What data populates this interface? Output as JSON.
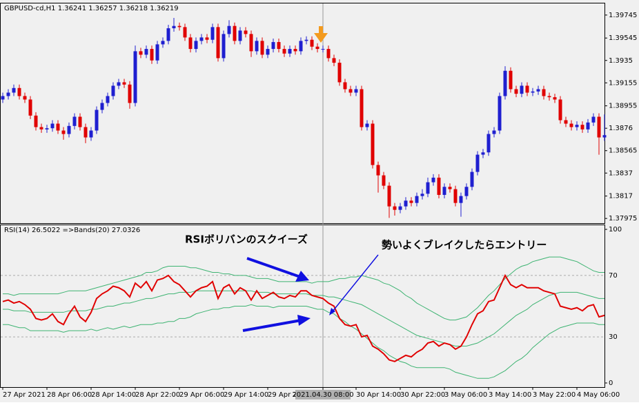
{
  "chart_data": [
    {
      "type": "candlestick",
      "title": "GBPUSD-cd,H1 1.36241 1.36257 1.36218 1.36219",
      "categories": [
        "27 Apr 2021",
        null,
        null,
        null,
        null,
        null,
        null,
        null,
        "28 Apr 06:00",
        null,
        null,
        null,
        null,
        null,
        null,
        null,
        "28 Apr 14:00",
        null,
        null,
        null,
        null,
        null,
        null,
        null,
        "28 Apr 22:00",
        null,
        null,
        null,
        null,
        null,
        null,
        null,
        "29 Apr 06:00",
        null,
        null,
        null,
        null,
        null,
        null,
        null,
        "29 Apr 14:00",
        null,
        null,
        null,
        null,
        null,
        null,
        null,
        "29 Apr 22:00",
        null,
        null,
        null,
        null,
        null,
        null,
        null,
        null,
        null,
        "2021.04.30 08:00",
        null,
        null,
        null,
        null,
        null,
        "30 Apr 14:00",
        null,
        null,
        null,
        null,
        null,
        null,
        null,
        "30 Apr 22:00",
        null,
        null,
        null,
        null,
        null,
        null,
        null,
        "3 May 06:00",
        null,
        null,
        null,
        null,
        null,
        null,
        null,
        "3 May 14:00",
        null,
        null,
        null,
        null,
        null,
        null,
        null,
        "3 May 22:00",
        null,
        null,
        null,
        null,
        null,
        null,
        null,
        "4 May 06:00",
        null,
        null,
        null,
        null,
        null
      ],
      "crosshair_index": 58,
      "open": [
        1.3901,
        1.3904,
        1.3907,
        1.3911,
        1.3904,
        1.3901,
        1.3887,
        1.3877,
        1.3875,
        1.3876,
        1.388,
        1.3874,
        1.3871,
        1.3878,
        1.3886,
        1.3877,
        1.3868,
        1.3874,
        1.3892,
        1.3898,
        1.3904,
        1.3913,
        1.3916,
        1.3914,
        1.3898,
        1.3943,
        1.394,
        1.3945,
        1.3935,
        1.3949,
        1.3952,
        1.3963,
        1.3965,
        1.3964,
        1.3955,
        1.3945,
        1.3952,
        1.3955,
        1.3953,
        1.3964,
        1.3937,
        1.3958,
        1.3965,
        1.3952,
        1.3961,
        1.3958,
        1.3943,
        1.3952,
        1.394,
        1.3945,
        1.3951,
        1.3945,
        1.3941,
        1.3945,
        1.3943,
        1.3952,
        1.3953,
        1.3947,
        1.3945,
        1.3945,
        1.3937,
        1.3933,
        1.3916,
        1.391,
        1.3907,
        1.391,
        1.3877,
        1.388,
        1.3844,
        1.3835,
        1.3826,
        1.3808,
        1.3805,
        1.3808,
        1.3813,
        1.3811,
        1.3817,
        1.3819,
        1.3829,
        1.3833,
        1.3818,
        1.3825,
        1.3823,
        1.3811,
        1.3817,
        1.3825,
        1.3838,
        1.3853,
        1.3855,
        1.3871,
        1.3874,
        1.3904,
        1.3926,
        1.391,
        1.3906,
        1.3913,
        1.3907,
        1.3908,
        1.391,
        1.3904,
        1.3903,
        1.3901,
        1.3883,
        1.388,
        1.3877,
        1.3879,
        1.3875,
        1.3881,
        1.3886,
        1.3868
      ],
      "high": [
        1.3907,
        1.391,
        1.3914,
        1.3914,
        1.3907,
        1.3904,
        1.389,
        1.388,
        1.3879,
        1.3883,
        1.3883,
        1.3877,
        1.3881,
        1.3889,
        1.3889,
        1.388,
        1.3877,
        1.3895,
        1.3901,
        1.3907,
        1.3916,
        1.3919,
        1.3919,
        1.3917,
        1.3948,
        1.3946,
        1.3948,
        1.3948,
        1.3952,
        1.3955,
        1.3966,
        1.3972,
        1.3968,
        1.3967,
        1.3958,
        1.3955,
        1.3958,
        1.3958,
        1.3967,
        1.3967,
        1.3961,
        1.397,
        1.3968,
        1.3964,
        1.3964,
        1.3961,
        1.3955,
        1.3955,
        1.3948,
        1.3954,
        1.3954,
        1.3948,
        1.3948,
        1.3948,
        1.3955,
        1.3956,
        1.3956,
        1.395,
        1.3948,
        1.3948,
        1.394,
        1.3936,
        1.3919,
        1.3913,
        1.3913,
        1.3913,
        1.3883,
        1.3883,
        1.3847,
        1.3838,
        1.3829,
        1.3811,
        1.3811,
        1.3816,
        1.3816,
        1.382,
        1.3823,
        1.3833,
        1.3836,
        1.3836,
        1.3828,
        1.3828,
        1.3826,
        1.382,
        1.3828,
        1.3841,
        1.3856,
        1.3858,
        1.3874,
        1.3877,
        1.3907,
        1.393,
        1.3929,
        1.3913,
        1.3916,
        1.3916,
        1.3911,
        1.3913,
        1.3913,
        1.3907,
        1.3906,
        1.3904,
        1.3886,
        1.3883,
        1.3882,
        1.3882,
        1.3884,
        1.3889,
        1.3889,
        1.3888
      ],
      "low": [
        1.3898,
        1.3901,
        1.3904,
        1.3901,
        1.3898,
        1.3884,
        1.3874,
        1.3872,
        1.3872,
        1.3873,
        1.3871,
        1.3866,
        1.3868,
        1.3875,
        1.3874,
        1.3863,
        1.3865,
        1.3871,
        1.3889,
        1.3895,
        1.3901,
        1.391,
        1.3911,
        1.3893,
        1.3895,
        1.3937,
        1.3937,
        1.3932,
        1.3932,
        1.3946,
        1.3949,
        1.396,
        1.3961,
        1.3952,
        1.3942,
        1.3942,
        1.3949,
        1.395,
        1.395,
        1.3934,
        1.3934,
        1.3955,
        1.3949,
        1.3949,
        1.3955,
        1.3938,
        1.394,
        1.3937,
        1.3937,
        1.3942,
        1.3942,
        1.3938,
        1.3938,
        1.394,
        1.394,
        1.3949,
        1.3944,
        1.3942,
        1.3942,
        1.3934,
        1.393,
        1.3913,
        1.3907,
        1.3904,
        1.3904,
        1.3874,
        1.3874,
        1.3841,
        1.382,
        1.3823,
        1.3798,
        1.38,
        1.3802,
        1.3805,
        1.3808,
        1.3808,
        1.3814,
        1.3816,
        1.3826,
        1.3815,
        1.3815,
        1.382,
        1.3808,
        1.3799,
        1.3814,
        1.3822,
        1.3835,
        1.385,
        1.3852,
        1.3868,
        1.3871,
        1.3901,
        1.3907,
        1.3903,
        1.3903,
        1.3904,
        1.3904,
        1.3905,
        1.3901,
        1.39,
        1.3898,
        1.388,
        1.3877,
        1.3874,
        1.3874,
        1.3872,
        1.3872,
        1.3878,
        1.3853,
        1.3865
      ],
      "close": [
        1.3904,
        1.3907,
        1.3911,
        1.3904,
        1.3901,
        1.3887,
        1.3877,
        1.3875,
        1.3876,
        1.388,
        1.3874,
        1.3871,
        1.3878,
        1.3886,
        1.3877,
        1.3868,
        1.3874,
        1.3892,
        1.3898,
        1.3904,
        1.3913,
        1.3916,
        1.3914,
        1.3898,
        1.3943,
        1.394,
        1.3945,
        1.3935,
        1.3949,
        1.3952,
        1.3963,
        1.3965,
        1.3964,
        1.3955,
        1.3945,
        1.3952,
        1.3955,
        1.3953,
        1.3964,
        1.3937,
        1.3958,
        1.3965,
        1.3952,
        1.3961,
        1.3958,
        1.3943,
        1.3952,
        1.394,
        1.3945,
        1.3951,
        1.3945,
        1.3941,
        1.3945,
        1.3943,
        1.3952,
        1.3953,
        1.3947,
        1.3945,
        1.3945,
        1.3937,
        1.3933,
        1.3916,
        1.391,
        1.3907,
        1.391,
        1.3877,
        1.388,
        1.3844,
        1.3835,
        1.3826,
        1.3808,
        1.3805,
        1.3808,
        1.3813,
        1.3811,
        1.3817,
        1.3819,
        1.3829,
        1.3833,
        1.3818,
        1.3825,
        1.3823,
        1.3811,
        1.3817,
        1.3825,
        1.3838,
        1.3853,
        1.3855,
        1.3871,
        1.3874,
        1.3904,
        1.3926,
        1.391,
        1.3906,
        1.3913,
        1.3907,
        1.3908,
        1.391,
        1.3904,
        1.3903,
        1.3901,
        1.3883,
        1.388,
        1.3877,
        1.3879,
        1.3875,
        1.3881,
        1.3886,
        1.3868,
        1.387
      ],
      "up_color": "#1f1fd0",
      "down_color": "#e00000",
      "ylim": [
        1.3794,
        1.3984
      ],
      "yticks": [
        1.39745,
        1.39545,
        1.3935,
        1.39155,
        1.38955,
        1.3876,
        1.38565,
        1.3837,
        1.3817,
        1.37975
      ]
    },
    {
      "type": "line",
      "title": "RSI(14) 26.5022 =>Bands(20) 27.0326",
      "ylim": [
        0,
        100
      ],
      "yticks": [
        0,
        30,
        70,
        100
      ],
      "annotations": [
        "RSIボリバンのスクイーズ",
        "勢いよくブレイクしたらエントリー"
      ],
      "series": [
        {
          "color": "#3cb371",
          "values": [
            58,
            58,
            57,
            58,
            58,
            58,
            58,
            58,
            58,
            58,
            58,
            59,
            60,
            60,
            60,
            60,
            61,
            62,
            63,
            64,
            65,
            66,
            67,
            68,
            69,
            70,
            72,
            72,
            73,
            75,
            76,
            76,
            76,
            76,
            75,
            75,
            74,
            73,
            72,
            72,
            71,
            71,
            70,
            70,
            70,
            69,
            68,
            68,
            68,
            67,
            66,
            66,
            66,
            66,
            66,
            66,
            65,
            66,
            66,
            66,
            67,
            68,
            68,
            69,
            69,
            70,
            69,
            68,
            67,
            65,
            64,
            62,
            60,
            57,
            55,
            52,
            50,
            48,
            46,
            44,
            42,
            41,
            41,
            42,
            43,
            46,
            49,
            53,
            57,
            60,
            64,
            68,
            71,
            74,
            76,
            77,
            79,
            80,
            81,
            82,
            82,
            82,
            81,
            80,
            79,
            77,
            75,
            73,
            72,
            72
          ]
        },
        {
          "color": "#3cb371",
          "values": [
            48,
            48,
            47,
            47,
            47,
            46,
            46,
            46,
            46,
            46,
            46,
            46,
            47,
            47,
            47,
            47,
            48,
            48,
            49,
            50,
            50,
            51,
            52,
            52,
            53,
            54,
            55,
            55,
            56,
            57,
            58,
            58,
            59,
            59,
            59,
            60,
            60,
            60,
            60,
            60,
            60,
            60,
            60,
            60,
            60,
            60,
            59,
            59,
            59,
            58,
            58,
            58,
            58,
            58,
            58,
            58,
            57,
            57,
            57,
            56,
            56,
            55,
            54,
            53,
            52,
            51,
            49,
            47,
            45,
            43,
            41,
            39,
            37,
            35,
            33,
            31,
            30,
            29,
            28,
            27,
            26,
            25,
            24,
            24,
            24,
            25,
            26,
            28,
            30,
            32,
            35,
            38,
            41,
            44,
            46,
            48,
            51,
            53,
            55,
            57,
            58,
            59,
            59,
            59,
            59,
            58,
            57,
            56,
            55,
            55
          ]
        },
        {
          "color": "#3cb371",
          "values": [
            38,
            38,
            37,
            36,
            36,
            34,
            34,
            34,
            34,
            34,
            34,
            33,
            34,
            34,
            34,
            34,
            35,
            34,
            35,
            36,
            35,
            36,
            37,
            36,
            37,
            38,
            38,
            38,
            39,
            39,
            40,
            40,
            42,
            42,
            43,
            45,
            46,
            47,
            48,
            48,
            49,
            49,
            50,
            50,
            50,
            51,
            50,
            50,
            50,
            49,
            50,
            50,
            50,
            50,
            50,
            50,
            49,
            48,
            48,
            46,
            45,
            42,
            40,
            37,
            35,
            32,
            29,
            26,
            23,
            21,
            18,
            16,
            14,
            13,
            11,
            10,
            10,
            10,
            10,
            10,
            10,
            9,
            7,
            6,
            5,
            4,
            3,
            3,
            3,
            4,
            6,
            8,
            11,
            14,
            16,
            19,
            23,
            26,
            29,
            32,
            34,
            36,
            37,
            38,
            39,
            39,
            39,
            39,
            38,
            38
          ]
        },
        {
          "color": "#e00000",
          "values": [
            53,
            54,
            52,
            53,
            51,
            48,
            42,
            41,
            42,
            45,
            40,
            38,
            45,
            50,
            43,
            40,
            46,
            55,
            58,
            60,
            63,
            62,
            60,
            56,
            65,
            62,
            66,
            60,
            67,
            68,
            70,
            66,
            64,
            60,
            56,
            60,
            62,
            63,
            66,
            55,
            62,
            64,
            58,
            62,
            60,
            54,
            60,
            55,
            57,
            59,
            56,
            55,
            57,
            56,
            60,
            60,
            57,
            56,
            55,
            52,
            50,
            42,
            38,
            37,
            38,
            30,
            31,
            24,
            22,
            19,
            15,
            14,
            16,
            18,
            17,
            20,
            22,
            26,
            27,
            24,
            26,
            25,
            22,
            24,
            30,
            38,
            45,
            47,
            53,
            54,
            62,
            70,
            64,
            62,
            64,
            62,
            62,
            62,
            60,
            59,
            58,
            50,
            49,
            48,
            49,
            47,
            50,
            51,
            43,
            44
          ]
        }
      ]
    }
  ]
}
